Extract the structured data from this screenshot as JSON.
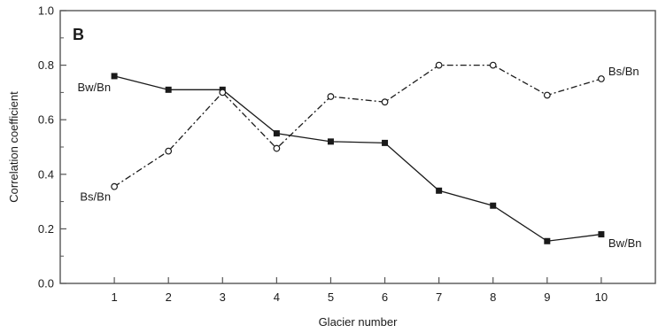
{
  "chart_data": {
    "type": "line",
    "panel_label": "B",
    "xlabel": "Glacier number",
    "ylabel": "Correlation coefficient",
    "xlim": [
      0,
      11
    ],
    "ylim": [
      0.0,
      1.0
    ],
    "x_ticks": [
      1,
      2,
      3,
      4,
      5,
      6,
      7,
      8,
      9,
      10
    ],
    "x_tick_labels": [
      "1",
      "2",
      "3",
      "4",
      "5",
      "6",
      "7",
      "8",
      "9",
      "10"
    ],
    "y_ticks": [
      0.0,
      0.2,
      0.4,
      0.6,
      0.8,
      1.0
    ],
    "y_tick_labels": [
      "0.0",
      "0.2",
      "0.4",
      "0.6",
      "0.8",
      "1.0"
    ],
    "y_minor_ticks": [
      0.1,
      0.3,
      0.5,
      0.7,
      0.9
    ],
    "grid": false,
    "x": [
      1,
      2,
      3,
      4,
      5,
      6,
      7,
      8,
      9,
      10
    ],
    "series": [
      {
        "name": "Bw/Bn",
        "values": [
          0.76,
          0.71,
          0.71,
          0.55,
          0.52,
          0.515,
          0.34,
          0.285,
          0.155,
          0.18
        ],
        "marker": "filled-square",
        "line_style": "solid",
        "color": "#1a1a1a",
        "labels": [
          {
            "text": "Bw/Bn",
            "x": 1,
            "y": 0.72,
            "side": "left"
          },
          {
            "text": "Bw/Bn",
            "x": 10,
            "y": 0.15,
            "side": "right"
          }
        ]
      },
      {
        "name": "Bs/Bn",
        "values": [
          0.355,
          0.485,
          0.7,
          0.495,
          0.685,
          0.665,
          0.8,
          0.8,
          0.69,
          0.75
        ],
        "marker": "open-circle",
        "line_style": "dashed",
        "color": "#1a1a1a",
        "labels": [
          {
            "text": "Bs/Bn",
            "x": 1,
            "y": 0.32,
            "side": "left"
          },
          {
            "text": "Bs/Bn",
            "x": 10,
            "y": 0.78,
            "side": "right"
          }
        ]
      }
    ]
  }
}
